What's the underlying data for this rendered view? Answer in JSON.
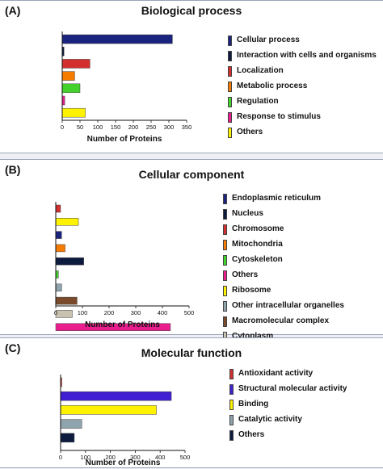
{
  "chart_data": [
    {
      "type": "bar",
      "orientation": "horizontal",
      "panel_label": "(A)",
      "title": "Biological process",
      "xlabel": "Number of Proteins",
      "xlim": [
        0,
        350
      ],
      "xticks": [
        "0",
        "50",
        "100",
        "150",
        "200",
        "250",
        "300",
        "350"
      ],
      "grid": false,
      "legend_position": "right",
      "series": [
        {
          "name": "Cellular process",
          "value": 310,
          "color": "#1a237e"
        },
        {
          "name": "Interaction with cells and organisms",
          "value": 5,
          "color": "#0d1b3e"
        },
        {
          "name": "Localization",
          "value": 78,
          "color": "#d32f2f"
        },
        {
          "name": "Metabolic process",
          "value": 35,
          "color": "#f57c00"
        },
        {
          "name": "Regulation",
          "value": 50,
          "color": "#43d12b"
        },
        {
          "name": "Response to stimulus",
          "value": 7,
          "color": "#e91e8c"
        },
        {
          "name": "Others",
          "value": 65,
          "color": "#fff200"
        }
      ]
    },
    {
      "type": "bar",
      "orientation": "horizontal",
      "panel_label": "(B)",
      "title": "Cellular component",
      "xlabel": "Number of Proteins",
      "xlim": [
        0,
        500
      ],
      "xticks": [
        "0",
        "100",
        "200",
        "300",
        "400",
        "500"
      ],
      "grid": false,
      "legend_position": "right",
      "series": [
        {
          "name": "Endoplasmic reticulum",
          "value": 18,
          "color": "#1a237e"
        },
        {
          "name": "Nucleus",
          "value": 85,
          "color": "#0d1b3e"
        },
        {
          "name": "Chromosome",
          "value": 22,
          "color": "#d32f2f"
        },
        {
          "name": "Mitochondria",
          "value": 35,
          "color": "#f57c00"
        },
        {
          "name": "Cytoskeleton",
          "value": 105,
          "color": "#43d12b"
        },
        {
          "name": "Others",
          "value": 10,
          "color": "#e91e8c"
        },
        {
          "name": "Ribosome",
          "value": 22,
          "color": "#fff200"
        },
        {
          "name": "Other intracellular organelles",
          "value": 80,
          "color": "#90a4ae"
        },
        {
          "name": "Macromolecular complex",
          "value": 62,
          "color": "#7b4a2a"
        },
        {
          "name": "Cytoplasm",
          "value": 430,
          "color": "#c8c2b0"
        }
      ],
      "bar_order_top_to_bottom": [
        {
          "color": "#d32f2f",
          "value": 18
        },
        {
          "color": "#fff200",
          "value": 85
        },
        {
          "color": "#1a237e",
          "value": 22
        },
        {
          "color": "#f57c00",
          "value": 35
        },
        {
          "color": "#0d1b3e",
          "value": 105
        },
        {
          "color": "#43d12b",
          "value": 10
        },
        {
          "color": "#90a4ae",
          "value": 22
        },
        {
          "color": "#7b4a2a",
          "value": 80
        },
        {
          "color": "#c8c2b0",
          "value": 62
        },
        {
          "color": "#e91e8c",
          "value": 430
        }
      ]
    },
    {
      "type": "bar",
      "orientation": "horizontal",
      "panel_label": "(C)",
      "title": "Molecular function",
      "xlabel": "Number of Proteins",
      "xlim": [
        0,
        500
      ],
      "xticks": [
        "0",
        "100",
        "200",
        "300",
        "400",
        "500"
      ],
      "grid": false,
      "legend_position": "right",
      "series": [
        {
          "name": "Antioxidant activity",
          "value": 3,
          "color": "#d32f2f"
        },
        {
          "name": "Structural molecular activity",
          "value": 445,
          "color": "#3f1fd1"
        },
        {
          "name": "Binding",
          "value": 385,
          "color": "#fff200"
        },
        {
          "name": "Catalytic activity",
          "value": 85,
          "color": "#90a4ae"
        },
        {
          "name": "Others",
          "value": 55,
          "color": "#0d1b3e"
        }
      ]
    }
  ]
}
